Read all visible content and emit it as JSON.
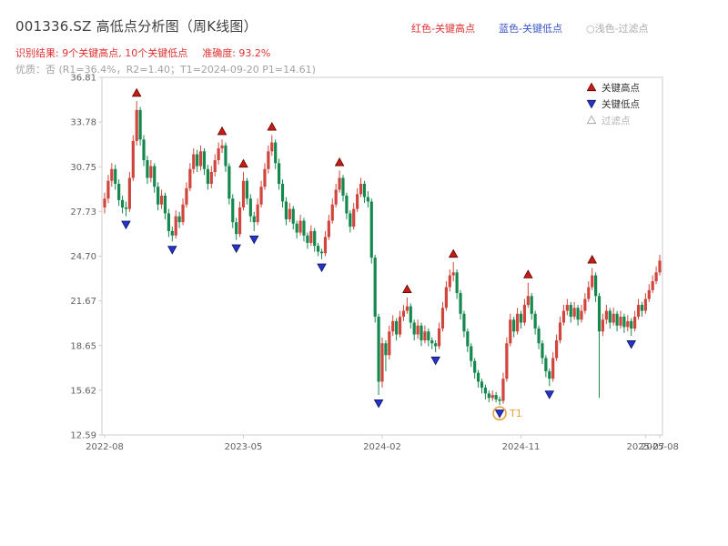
{
  "title": "001336.SZ 高低点分析图（周K线图）",
  "header_legend": {
    "high": "红色-关键高点",
    "low": "蓝色-关键低点",
    "filtered": "○浅色-过滤点"
  },
  "result_line": {
    "recognition": "识别结果: 9个关键高点, 10个关键低点",
    "accuracy": "准确度: 93.2%"
  },
  "quality_line": "优质：否 (R1=36.4%，R2=1.40；T1=2024-09-20 P1=14.61)",
  "colors": {
    "up": "#d0453c",
    "down": "#15884e",
    "key_high": "#c81d12",
    "key_high_edge": "#5c0000",
    "key_low": "#2434c8",
    "key_low_edge": "#0d1560",
    "filtered_outline": "#999999",
    "t1": "#e8a13b",
    "axis": "#cccccc",
    "tick_text": "#5f5f5f",
    "legend_text": "#333333",
    "legend_muted": "#b3b3b3"
  },
  "chart_data": {
    "type": "candlestick",
    "title": "001336.SZ 高低点分析图（周K线图）",
    "grid": false,
    "legend_position": "top-right-inside",
    "legend": [
      {
        "label": "关键高点",
        "marker": "triangle-up",
        "color_key": "key_high"
      },
      {
        "label": "关键低点",
        "marker": "triangle-down",
        "color_key": "key_low"
      },
      {
        "label": "过滤点",
        "marker": "triangle-outline",
        "color_key": "filtered_outline"
      }
    ],
    "y_axis": {
      "min": 12.59,
      "max": 36.81,
      "ticks": [
        "36.81",
        "33.78",
        "30.75",
        "27.73",
        "24.70",
        "21.67",
        "18.65",
        "15.62",
        "12.59"
      ]
    },
    "x_axis": {
      "ticks": [
        {
          "label": "2022-08",
          "week": 0
        },
        {
          "label": "2023-05",
          "week": 39
        },
        {
          "label": "2024-02",
          "week": 78
        },
        {
          "label": "2024-11",
          "week": 117
        },
        {
          "label": "2025-07",
          "week": 152
        },
        {
          "label": "2025-08",
          "week": 156
        }
      ]
    },
    "candles": [
      [
        28.0,
        29.0,
        27.6,
        28.6
      ],
      [
        28.6,
        30.2,
        28.3,
        29.8
      ],
      [
        29.8,
        31.0,
        29.4,
        30.6
      ],
      [
        30.6,
        30.9,
        29.2,
        29.6
      ],
      [
        29.6,
        29.9,
        28.1,
        28.5
      ],
      [
        28.5,
        28.8,
        27.6,
        28.0
      ],
      [
        28.0,
        28.4,
        27.4,
        27.9
      ],
      [
        27.9,
        30.4,
        27.7,
        30.0
      ],
      [
        30.0,
        32.9,
        29.8,
        32.5
      ],
      [
        32.5,
        35.2,
        32.2,
        34.6
      ],
      [
        34.6,
        34.8,
        32.2,
        32.6
      ],
      [
        32.6,
        32.9,
        30.8,
        31.2
      ],
      [
        31.2,
        31.5,
        29.6,
        30.0
      ],
      [
        30.0,
        31.2,
        29.7,
        30.8
      ],
      [
        30.8,
        31.0,
        29.0,
        29.4
      ],
      [
        29.4,
        29.7,
        27.8,
        28.2
      ],
      [
        28.2,
        29.2,
        27.9,
        28.8
      ],
      [
        28.8,
        29.0,
        27.2,
        27.6
      ],
      [
        27.6,
        27.9,
        26.0,
        26.4
      ],
      [
        26.4,
        26.7,
        25.7,
        26.1
      ],
      [
        26.1,
        27.8,
        25.9,
        27.4
      ],
      [
        27.4,
        27.7,
        26.6,
        27.0
      ],
      [
        27.0,
        28.6,
        26.8,
        28.2
      ],
      [
        28.2,
        29.7,
        28.0,
        29.3
      ],
      [
        29.3,
        31.0,
        29.1,
        30.6
      ],
      [
        30.6,
        32.0,
        30.3,
        31.6
      ],
      [
        31.6,
        31.9,
        30.4,
        30.8
      ],
      [
        30.8,
        32.2,
        30.5,
        31.8
      ],
      [
        31.8,
        32.0,
        30.2,
        30.6
      ],
      [
        30.6,
        30.9,
        29.2,
        29.6
      ],
      [
        29.6,
        30.8,
        29.3,
        30.4
      ],
      [
        30.4,
        31.6,
        30.1,
        31.2
      ],
      [
        31.2,
        32.4,
        30.9,
        32.0
      ],
      [
        32.0,
        32.6,
        31.7,
        32.2
      ],
      [
        32.2,
        32.4,
        30.4,
        30.8
      ],
      [
        30.8,
        31.0,
        28.2,
        28.6
      ],
      [
        28.6,
        28.9,
        26.6,
        27.0
      ],
      [
        27.0,
        27.3,
        25.8,
        26.2
      ],
      [
        26.2,
        28.4,
        26.0,
        28.0
      ],
      [
        28.0,
        30.4,
        27.8,
        29.8
      ],
      [
        29.8,
        30.0,
        28.2,
        28.6
      ],
      [
        28.6,
        28.9,
        27.0,
        27.4
      ],
      [
        27.4,
        27.7,
        26.4,
        27.0
      ],
      [
        27.0,
        28.6,
        26.8,
        28.2
      ],
      [
        28.2,
        29.8,
        28.0,
        29.4
      ],
      [
        29.4,
        31.0,
        29.2,
        30.6
      ],
      [
        30.6,
        32.2,
        30.3,
        31.8
      ],
      [
        31.8,
        32.9,
        31.5,
        32.4
      ],
      [
        32.4,
        32.6,
        30.6,
        31.0
      ],
      [
        31.0,
        31.3,
        29.2,
        29.6
      ],
      [
        29.6,
        29.9,
        28.0,
        28.4
      ],
      [
        28.4,
        28.7,
        26.8,
        27.2
      ],
      [
        27.2,
        28.3,
        27.0,
        27.9
      ],
      [
        27.9,
        28.1,
        26.5,
        26.9
      ],
      [
        26.9,
        27.1,
        25.9,
        26.3
      ],
      [
        26.3,
        27.5,
        26.1,
        27.1
      ],
      [
        27.1,
        27.3,
        25.7,
        26.1
      ],
      [
        26.1,
        26.3,
        25.2,
        25.6
      ],
      [
        25.6,
        26.8,
        25.4,
        26.4
      ],
      [
        26.4,
        26.6,
        25.0,
        25.4
      ],
      [
        25.4,
        25.6,
        24.7,
        25.0
      ],
      [
        25.0,
        25.2,
        24.5,
        24.9
      ],
      [
        24.9,
        26.4,
        24.7,
        26.0
      ],
      [
        26.0,
        27.5,
        25.8,
        27.1
      ],
      [
        27.1,
        28.6,
        26.9,
        28.2
      ],
      [
        28.2,
        29.6,
        28.0,
        29.2
      ],
      [
        29.2,
        30.5,
        29.0,
        30.0
      ],
      [
        30.0,
        30.2,
        28.4,
        28.8
      ],
      [
        28.8,
        29.0,
        27.2,
        27.6
      ],
      [
        27.6,
        27.8,
        26.3,
        26.7
      ],
      [
        26.7,
        28.3,
        26.5,
        27.9
      ],
      [
        27.9,
        29.3,
        27.7,
        28.9
      ],
      [
        28.9,
        30.0,
        28.7,
        29.6
      ],
      [
        29.6,
        29.8,
        28.3,
        28.7
      ],
      [
        28.7,
        29.1,
        28.0,
        28.4
      ],
      [
        28.4,
        28.6,
        24.2,
        24.6
      ],
      [
        24.6,
        24.8,
        20.2,
        20.6
      ],
      [
        20.6,
        20.8,
        15.3,
        16.2
      ],
      [
        16.2,
        19.2,
        15.8,
        18.8
      ],
      [
        18.8,
        19.0,
        16.9,
        18.0
      ],
      [
        18.0,
        20.0,
        17.7,
        19.6
      ],
      [
        19.6,
        20.7,
        19.3,
        20.3
      ],
      [
        20.3,
        20.5,
        19.0,
        19.4
      ],
      [
        19.4,
        21.0,
        19.2,
        20.6
      ],
      [
        20.6,
        21.4,
        20.3,
        21.0
      ],
      [
        21.0,
        21.9,
        20.8,
        21.3
      ],
      [
        21.3,
        21.5,
        19.8,
        20.2
      ],
      [
        20.2,
        20.4,
        19.0,
        19.4
      ],
      [
        19.4,
        20.4,
        19.1,
        20.0
      ],
      [
        20.0,
        20.2,
        18.6,
        19.0
      ],
      [
        19.0,
        20.0,
        18.8,
        19.6
      ],
      [
        19.6,
        19.8,
        18.6,
        19.0
      ],
      [
        19.0,
        19.2,
        18.4,
        18.8
      ],
      [
        18.8,
        19.0,
        18.2,
        18.6
      ],
      [
        18.6,
        20.2,
        18.4,
        19.8
      ],
      [
        19.8,
        21.6,
        19.6,
        21.2
      ],
      [
        21.2,
        23.0,
        21.0,
        22.6
      ],
      [
        22.6,
        23.8,
        22.3,
        23.4
      ],
      [
        23.4,
        24.3,
        23.0,
        23.6
      ],
      [
        23.6,
        23.8,
        21.8,
        22.2
      ],
      [
        22.2,
        22.4,
        20.4,
        20.8
      ],
      [
        20.8,
        21.0,
        19.2,
        19.6
      ],
      [
        19.6,
        19.8,
        18.2,
        18.6
      ],
      [
        18.6,
        18.8,
        17.2,
        17.6
      ],
      [
        17.6,
        17.8,
        16.4,
        16.8
      ],
      [
        16.8,
        17.0,
        15.8,
        16.2
      ],
      [
        16.2,
        16.4,
        15.4,
        15.8
      ],
      [
        15.8,
        16.0,
        15.0,
        15.4
      ],
      [
        15.4,
        15.6,
        14.8,
        15.1
      ],
      [
        15.1,
        15.6,
        14.9,
        15.3
      ],
      [
        15.3,
        15.5,
        14.8,
        15.0
      ],
      [
        15.0,
        15.2,
        14.61,
        14.9
      ],
      [
        14.9,
        16.8,
        14.7,
        16.4
      ],
      [
        16.4,
        19.2,
        16.2,
        18.8
      ],
      [
        18.8,
        20.8,
        18.6,
        20.4
      ],
      [
        20.4,
        20.6,
        19.2,
        19.6
      ],
      [
        19.6,
        21.2,
        19.4,
        20.8
      ],
      [
        20.8,
        21.0,
        19.8,
        20.2
      ],
      [
        20.2,
        21.8,
        20.0,
        21.4
      ],
      [
        21.4,
        22.9,
        21.2,
        22.0
      ],
      [
        22.0,
        22.2,
        20.4,
        20.8
      ],
      [
        20.8,
        21.0,
        19.4,
        19.8
      ],
      [
        19.8,
        20.0,
        18.4,
        18.8
      ],
      [
        18.8,
        19.0,
        17.4,
        17.8
      ],
      [
        17.8,
        18.0,
        16.5,
        16.9
      ],
      [
        16.9,
        17.1,
        15.9,
        16.4
      ],
      [
        16.4,
        18.2,
        16.2,
        17.8
      ],
      [
        17.8,
        19.4,
        17.6,
        19.0
      ],
      [
        19.0,
        20.6,
        18.8,
        20.2
      ],
      [
        20.2,
        21.4,
        20.0,
        21.0
      ],
      [
        21.0,
        21.8,
        20.7,
        21.4
      ],
      [
        21.4,
        21.6,
        20.2,
        20.6
      ],
      [
        20.6,
        21.6,
        20.4,
        21.2
      ],
      [
        21.2,
        21.4,
        20.0,
        20.4
      ],
      [
        20.4,
        21.4,
        20.2,
        21.0
      ],
      [
        21.0,
        22.2,
        20.8,
        21.8
      ],
      [
        21.8,
        23.0,
        21.6,
        22.6
      ],
      [
        22.6,
        23.9,
        22.4,
        23.4
      ],
      [
        23.4,
        23.6,
        21.6,
        22.0
      ],
      [
        22.0,
        22.2,
        15.1,
        19.6
      ],
      [
        19.6,
        20.8,
        19.3,
        20.4
      ],
      [
        20.4,
        21.4,
        20.1,
        21.0
      ],
      [
        21.0,
        21.2,
        19.8,
        20.2
      ],
      [
        20.2,
        21.2,
        20.0,
        20.8
      ],
      [
        20.8,
        21.0,
        19.6,
        20.0
      ],
      [
        20.0,
        21.0,
        19.8,
        20.6
      ],
      [
        20.6,
        20.8,
        19.5,
        19.9
      ],
      [
        19.9,
        20.7,
        19.6,
        20.3
      ],
      [
        20.3,
        20.5,
        19.3,
        19.8
      ],
      [
        19.8,
        21.0,
        19.6,
        20.6
      ],
      [
        20.6,
        21.8,
        20.4,
        21.4
      ],
      [
        21.4,
        21.6,
        20.6,
        21.0
      ],
      [
        21.0,
        22.2,
        20.8,
        21.8
      ],
      [
        21.8,
        22.8,
        21.6,
        22.4
      ],
      [
        22.4,
        23.4,
        22.2,
        23.0
      ],
      [
        23.0,
        24.0,
        22.8,
        23.6
      ],
      [
        23.6,
        24.8,
        23.4,
        24.4
      ]
    ],
    "key_highs": [
      9,
      33,
      39,
      47,
      66,
      85,
      98,
      119,
      137
    ],
    "key_lows": [
      6,
      19,
      37,
      42,
      61,
      77,
      93,
      111,
      125,
      148
    ],
    "t1": {
      "index": 111,
      "label": "T1",
      "price": 14.61
    }
  }
}
